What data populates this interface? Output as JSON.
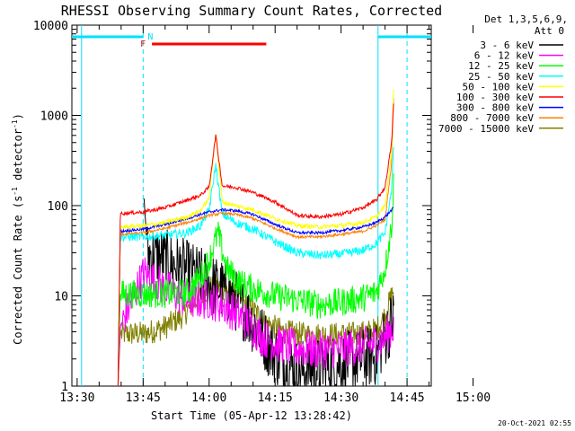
{
  "chart_data": {
    "type": "line",
    "title": "RHESSI Observing Summary Count Rates, Corrected",
    "xlabel": "Start Time (05-Apr-12 13:28:42)",
    "ylabel_main": "Corrected Count Rate (s",
    "ylabel_sup1": "-1",
    "ylabel_mid": " detector",
    "ylabel_sup2": "-1",
    "ylabel_end": ")",
    "y_scale": "log",
    "ylim": [
      1,
      10000
    ],
    "xlim_minutes": [
      -1.2,
      80.5
    ],
    "x_tick_labels": [
      "13:30",
      "13:45",
      "14:00",
      "14:15",
      "14:30",
      "14:45",
      "15:00"
    ],
    "y_tick_labels": [
      "1",
      "10",
      "100",
      "1000",
      "10000"
    ],
    "y_ticks": [
      1,
      10,
      100,
      1000,
      10000
    ],
    "detector_info": [
      "Det 1,3,5,6,9,",
      "Att 0"
    ],
    "timestamp": "20-Oct-2021 02:55",
    "flag_labels": {
      "flare": "F",
      "night": "N"
    },
    "night_intervals": [
      [
        -1.2,
        15.0
      ],
      [
        68.4,
        80.5
      ]
    ],
    "saa_boundaries": [
      1.0,
      15.0,
      68.4,
      75.0
    ],
    "flare_flag_span": [
      17.0,
      43.0
    ],
    "legend_position": "top-right",
    "series": [
      {
        "name": "3 - 6 keV",
        "color": "#000000",
        "start": 15.2,
        "end": 72.0,
        "values": [
          [
            15.2,
            120
          ],
          [
            16,
            30
          ],
          [
            20,
            25
          ],
          [
            24,
            20
          ],
          [
            28,
            16
          ],
          [
            31,
            13
          ],
          [
            34,
            11
          ],
          [
            37,
            8
          ],
          [
            40,
            5
          ],
          [
            43,
            3
          ],
          [
            46,
            2
          ],
          [
            50,
            1.5
          ],
          [
            55,
            1.6
          ],
          [
            60,
            1.8
          ],
          [
            65,
            2
          ],
          [
            68,
            2.2
          ],
          [
            70,
            3.5
          ],
          [
            72,
            6
          ]
        ]
      },
      {
        "name": "6 - 12 keV",
        "color": "#ff00ff",
        "start": 9.3,
        "end": 72.0,
        "values": [
          [
            9.3,
            1
          ],
          [
            9.8,
            4.5
          ],
          [
            15.2,
            18
          ],
          [
            20,
            12
          ],
          [
            25,
            9
          ],
          [
            30,
            9
          ],
          [
            33,
            8
          ],
          [
            36,
            6.5
          ],
          [
            39,
            5
          ],
          [
            42,
            3.5
          ],
          [
            45,
            3
          ],
          [
            50,
            2.6
          ],
          [
            55,
            2.5
          ],
          [
            60,
            2.6
          ],
          [
            65,
            2.8
          ],
          [
            68,
            3
          ],
          [
            70,
            3.5
          ],
          [
            72,
            4.5
          ]
        ]
      },
      {
        "name": "12 - 25 keV",
        "color": "#00ff00",
        "start": 9.3,
        "end": 72.0,
        "values": [
          [
            9.3,
            1
          ],
          [
            9.8,
            10.5
          ],
          [
            15.2,
            10.5
          ],
          [
            20,
            10.5
          ],
          [
            25,
            11
          ],
          [
            28,
            16
          ],
          [
            30,
            25
          ],
          [
            32,
            50
          ],
          [
            34,
            20
          ],
          [
            37,
            14
          ],
          [
            40,
            12
          ],
          [
            45,
            10
          ],
          [
            50,
            9
          ],
          [
            55,
            8
          ],
          [
            60,
            8.5
          ],
          [
            65,
            9.5
          ],
          [
            68,
            11
          ],
          [
            70,
            20
          ],
          [
            71.5,
            60
          ],
          [
            72,
            200
          ]
        ]
      },
      {
        "name": "25 - 50 keV",
        "color": "#00ffff",
        "start": 9.3,
        "end": 72.0,
        "values": [
          [
            9.3,
            1
          ],
          [
            9.8,
            45
          ],
          [
            15.2,
            45
          ],
          [
            20,
            47
          ],
          [
            25,
            50
          ],
          [
            28,
            60
          ],
          [
            30,
            90
          ],
          [
            31.5,
            280
          ],
          [
            33,
            80
          ],
          [
            36,
            65
          ],
          [
            40,
            55
          ],
          [
            45,
            40
          ],
          [
            50,
            30
          ],
          [
            55,
            28
          ],
          [
            60,
            29
          ],
          [
            65,
            32
          ],
          [
            68,
            38
          ],
          [
            70,
            50
          ],
          [
            71.5,
            150
          ],
          [
            72,
            500
          ]
        ]
      },
      {
        "name": "50 - 100 keV",
        "color": "#ffff00",
        "start": 9.3,
        "end": 72.0,
        "values": [
          [
            9.3,
            1
          ],
          [
            9.8,
            58
          ],
          [
            15.2,
            60
          ],
          [
            20,
            65
          ],
          [
            25,
            75
          ],
          [
            28,
            88
          ],
          [
            30,
            120
          ],
          [
            31.5,
            650
          ],
          [
            33,
            110
          ],
          [
            36,
            100
          ],
          [
            40,
            90
          ],
          [
            45,
            72
          ],
          [
            50,
            60
          ],
          [
            55,
            58
          ],
          [
            60,
            60
          ],
          [
            65,
            65
          ],
          [
            68,
            75
          ],
          [
            70,
            100
          ],
          [
            71.5,
            400
          ],
          [
            72,
            2400
          ]
        ]
      },
      {
        "name": "100 - 300 keV",
        "color": "#ff0000",
        "start": 9.3,
        "end": 72.0,
        "values": [
          [
            9.3,
            1
          ],
          [
            9.8,
            82
          ],
          [
            15.2,
            85
          ],
          [
            20,
            95
          ],
          [
            25,
            115
          ],
          [
            28,
            130
          ],
          [
            30,
            160
          ],
          [
            31.5,
            600
          ],
          [
            33,
            165
          ],
          [
            36,
            160
          ],
          [
            40,
            140
          ],
          [
            45,
            110
          ],
          [
            50,
            78
          ],
          [
            55,
            75
          ],
          [
            60,
            80
          ],
          [
            65,
            95
          ],
          [
            68,
            115
          ],
          [
            70,
            160
          ],
          [
            71.5,
            500
          ],
          [
            72,
            1600
          ]
        ]
      },
      {
        "name": "300 - 800 keV",
        "color": "#0000ff",
        "start": 9.3,
        "end": 72.0,
        "values": [
          [
            9.3,
            1
          ],
          [
            9.8,
            52
          ],
          [
            15.2,
            55
          ],
          [
            20,
            62
          ],
          [
            25,
            72
          ],
          [
            28,
            80
          ],
          [
            30,
            85
          ],
          [
            33,
            90
          ],
          [
            36,
            88
          ],
          [
            40,
            80
          ],
          [
            45,
            62
          ],
          [
            50,
            50
          ],
          [
            55,
            50
          ],
          [
            60,
            53
          ],
          [
            65,
            58
          ],
          [
            68,
            65
          ],
          [
            70,
            75
          ],
          [
            72,
            95
          ]
        ]
      },
      {
        "name": "800 - 7000 keV",
        "color": "#ff8000",
        "start": 9.3,
        "end": 72.0,
        "values": [
          [
            9.3,
            1
          ],
          [
            9.8,
            48
          ],
          [
            15.2,
            50
          ],
          [
            20,
            56
          ],
          [
            25,
            65
          ],
          [
            28,
            72
          ],
          [
            30,
            78
          ],
          [
            33,
            82
          ],
          [
            36,
            80
          ],
          [
            40,
            72
          ],
          [
            45,
            56
          ],
          [
            50,
            45
          ],
          [
            55,
            45
          ],
          [
            60,
            48
          ],
          [
            65,
            52
          ],
          [
            68,
            60
          ],
          [
            70,
            70
          ],
          [
            71.5,
            300
          ],
          [
            72,
            2000
          ]
        ]
      },
      {
        "name": "7000 - 15000 keV",
        "color": "#808000",
        "start": 9.3,
        "end": 72.0,
        "values": [
          [
            9.3,
            1
          ],
          [
            9.8,
            3.8
          ],
          [
            15.2,
            3.8
          ],
          [
            20,
            4.5
          ],
          [
            24,
            6
          ],
          [
            28,
            10
          ],
          [
            31,
            13
          ],
          [
            34,
            12
          ],
          [
            37,
            9
          ],
          [
            40,
            7
          ],
          [
            43,
            5
          ],
          [
            47,
            4
          ],
          [
            52,
            3.7
          ],
          [
            58,
            3.7
          ],
          [
            64,
            3.8
          ],
          [
            68,
            4.2
          ],
          [
            70,
            6
          ],
          [
            72,
            12
          ]
        ]
      }
    ]
  }
}
